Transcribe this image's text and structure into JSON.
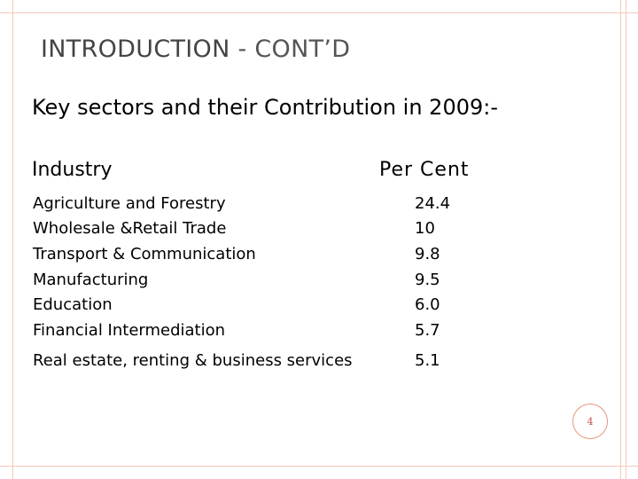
{
  "slide": {
    "title_part1": "INTRODUCTION",
    "title_part2": " - CONT’D",
    "subtitle": "Key sectors and their Contribution in 2009:-",
    "table": {
      "header_industry": "Industry",
      "header_percent": "Per Cent",
      "rows": [
        {
          "industry": "Agriculture and Forestry",
          "percent": "24.4"
        },
        {
          "industry": "Wholesale &Retail Trade",
          "percent": "10"
        },
        {
          "industry": "Transport & Communication",
          "percent": "9.8"
        },
        {
          "industry": "Manufacturing",
          "percent": "9.5"
        },
        {
          "industry": "Education",
          "percent": "6.0"
        },
        {
          "industry": "Financial Intermediation",
          "percent": "5.7"
        },
        {
          "industry": "Real estate, renting & business services",
          "percent": "5.1"
        }
      ]
    },
    "page_number": "4"
  },
  "colors": {
    "frame": "#f4c9b8",
    "badge_border": "#e8967a",
    "badge_text": "#c0504d"
  }
}
